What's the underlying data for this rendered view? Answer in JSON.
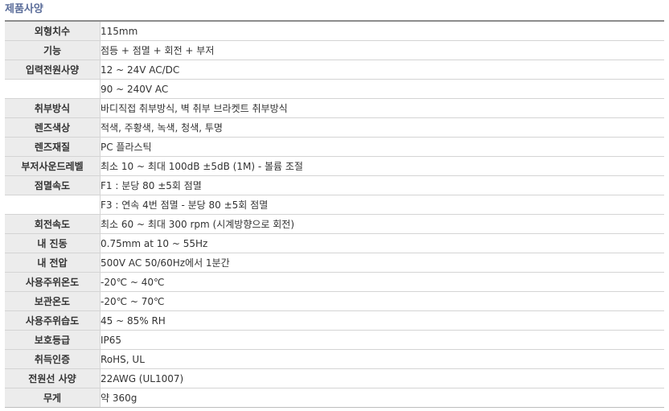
{
  "section": {
    "title": "제품사양"
  },
  "rows": [
    {
      "label": "외형치수",
      "value": "115mm"
    },
    {
      "label": "기능",
      "value": "점등 + 점멸 + 회전 + 부저"
    },
    {
      "label": "입력전원사양",
      "value": "12 ~ 24V AC/DC"
    },
    {
      "label": "",
      "value": "90 ~ 240V AC"
    },
    {
      "label": "취부방식",
      "value": "바디직접 취부방식, 벽 취부 브라켓트 취부방식"
    },
    {
      "label": "렌즈색상",
      "value": "적색, 주황색, 녹색, 청색, 투명"
    },
    {
      "label": "렌즈재질",
      "value": "PC 플라스틱"
    },
    {
      "label": "부저사운드레벨",
      "value": "최소 10 ~ 최대 100dB ±5dB (1M) - 볼륨 조절"
    },
    {
      "label": "점멸속도",
      "value": "F1 : 분당 80 ±5회 점멸"
    },
    {
      "label": "",
      "value": "F3 : 연속 4번 점멸 - 분당 80 ±5회 점멸"
    },
    {
      "label": "회전속도",
      "value": "최소 60 ~ 최대 300 rpm (시계방향으로 회전)"
    },
    {
      "label": "내 진동",
      "value": "0.75mm at 10 ~ 55Hz"
    },
    {
      "label": "내 전압",
      "value": "500V AC 50/60Hz에서 1분간"
    },
    {
      "label": "사용주위온도",
      "value": "-20℃ ~ 40℃"
    },
    {
      "label": "보관온도",
      "value": "-20℃ ~ 70℃"
    },
    {
      "label": "사용주위습도",
      "value": "45 ~ 85% RH"
    },
    {
      "label": "보호등급",
      "value": "IP65"
    },
    {
      "label": "취득인증",
      "value": "RoHS, UL"
    },
    {
      "label": "전원선 사양",
      "value": "22AWG (UL1007)"
    },
    {
      "label": "무게",
      "value": "약 360g"
    }
  ]
}
